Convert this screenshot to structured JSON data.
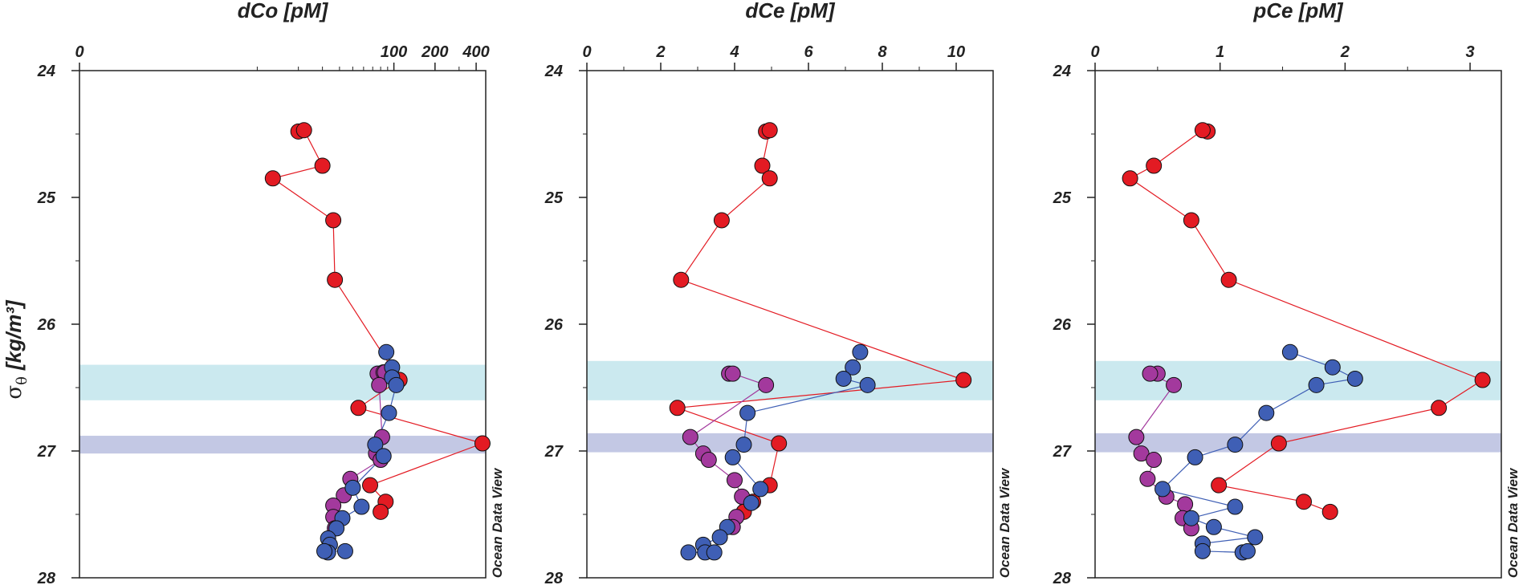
{
  "colors": {
    "upper": "#e31b23",
    "middle": "#a3399d",
    "lower": "#3f5fb5",
    "band_upper": "#cbe9ef",
    "band_lower": "#c3c8e4",
    "axis": "#222222"
  },
  "y_axis": {
    "label_symbol": "σ",
    "label_subscript": "θ",
    "label_unit": "[kg/m³]",
    "ylim": [
      24,
      28
    ],
    "ticks": [
      "24",
      "25",
      "26",
      "27",
      "28"
    ]
  },
  "watermark": "Ocean Data View",
  "chart_data": [
    {
      "type": "line",
      "title": "dCo [pM]",
      "x_scale": "log",
      "xlim": [
        0.5,
        470
      ],
      "x_ticks": [
        {
          "value": 0.5,
          "label": "0"
        },
        {
          "value": 100,
          "label": "100"
        },
        {
          "value": 200,
          "label": "200"
        },
        {
          "value": 400,
          "label": "400"
        }
      ],
      "x_minor": [
        10,
        20,
        30,
        40,
        50,
        60,
        70,
        80,
        90,
        300
      ],
      "bands": [
        [
          26.32,
          26.6
        ],
        [
          26.88,
          27.02
        ]
      ],
      "series": [
        {
          "name": "upper",
          "color_key": "upper",
          "points": [
            [
              20,
              24.48
            ],
            [
              22,
              24.47
            ],
            [
              30,
              24.75
            ],
            [
              13,
              24.85
            ],
            [
              36,
              25.18
            ],
            [
              37,
              25.65
            ],
            [
              110,
              26.44
            ],
            [
              55,
              26.66
            ],
            [
              445,
              26.94
            ],
            [
              67,
              27.27
            ],
            [
              87,
              27.4
            ],
            [
              80,
              27.48
            ]
          ]
        },
        {
          "name": "middle",
          "color_key": "middle",
          "points": [
            [
              76,
              26.39
            ],
            [
              84,
              26.38
            ],
            [
              86,
              26.38
            ],
            [
              78,
              26.48
            ],
            [
              82,
              26.89
            ],
            [
              74,
              27.02
            ],
            [
              80,
              27.07
            ],
            [
              48,
              27.22
            ],
            [
              43,
              27.35
            ],
            [
              36,
              27.43
            ],
            [
              36,
              27.52
            ],
            [
              37,
              27.61
            ]
          ]
        },
        {
          "name": "lower",
          "color_key": "lower",
          "points": [
            [
              88,
              26.22
            ],
            [
              97,
              26.34
            ],
            [
              97,
              26.42
            ],
            [
              104,
              26.48
            ],
            [
              92,
              26.7
            ],
            [
              73,
              26.95
            ],
            [
              84,
              27.04
            ],
            [
              50,
              27.29
            ],
            [
              58,
              27.44
            ],
            [
              42,
              27.53
            ],
            [
              38,
              27.61
            ],
            [
              33,
              27.69
            ],
            [
              34,
              27.74
            ],
            [
              33,
              27.8
            ],
            [
              31,
              27.79
            ],
            [
              44,
              27.79
            ]
          ]
        }
      ]
    },
    {
      "type": "line",
      "title": "dCe [pM]",
      "x_scale": "linear",
      "xlim": [
        0,
        11
      ],
      "x_ticks": [
        {
          "value": 0,
          "label": "0"
        },
        {
          "value": 2,
          "label": "2"
        },
        {
          "value": 4,
          "label": "4"
        },
        {
          "value": 6,
          "label": "6"
        },
        {
          "value": 8,
          "label": "8"
        },
        {
          "value": 10,
          "label": "10"
        }
      ],
      "x_minor": [
        1,
        3,
        5,
        7,
        9
      ],
      "bands": [
        [
          26.29,
          26.6
        ],
        [
          26.86,
          27.01
        ]
      ],
      "series": [
        {
          "name": "upper",
          "color_key": "upper",
          "points": [
            [
              4.85,
              24.48
            ],
            [
              4.95,
              24.47
            ],
            [
              4.75,
              24.75
            ],
            [
              4.95,
              24.85
            ],
            [
              3.65,
              25.18
            ],
            [
              2.55,
              25.65
            ],
            [
              10.2,
              26.44
            ],
            [
              2.45,
              26.66
            ],
            [
              5.2,
              26.94
            ],
            [
              4.95,
              27.27
            ],
            [
              4.5,
              27.4
            ],
            [
              4.25,
              27.48
            ]
          ]
        },
        {
          "name": "middle",
          "color_key": "middle",
          "points": [
            [
              3.85,
              26.39
            ],
            [
              3.95,
              26.39
            ],
            [
              4.85,
              26.48
            ],
            [
              2.8,
              26.89
            ],
            [
              3.15,
              27.02
            ],
            [
              3.3,
              27.07
            ],
            [
              4.0,
              27.23
            ],
            [
              4.2,
              27.36
            ],
            [
              4.05,
              27.52
            ],
            [
              3.95,
              27.6
            ]
          ]
        },
        {
          "name": "lower",
          "color_key": "lower",
          "points": [
            [
              7.4,
              26.22
            ],
            [
              7.2,
              26.34
            ],
            [
              6.95,
              26.43
            ],
            [
              7.6,
              26.48
            ],
            [
              4.35,
              26.7
            ],
            [
              4.25,
              26.95
            ],
            [
              3.95,
              27.05
            ],
            [
              4.7,
              27.3
            ],
            [
              4.45,
              27.41
            ],
            [
              3.8,
              27.6
            ],
            [
              3.6,
              27.68
            ],
            [
              3.15,
              27.74
            ],
            [
              3.2,
              27.8
            ],
            [
              2.75,
              27.8
            ],
            [
              3.45,
              27.8
            ]
          ]
        }
      ]
    },
    {
      "type": "line",
      "title": "pCe [pM]",
      "x_scale": "linear",
      "xlim": [
        0,
        3.25
      ],
      "x_ticks": [
        {
          "value": 0,
          "label": "0"
        },
        {
          "value": 1,
          "label": "1"
        },
        {
          "value": 2,
          "label": "2"
        },
        {
          "value": 3,
          "label": "3"
        }
      ],
      "x_minor": [
        0.5,
        1.5,
        2.5
      ],
      "bands": [
        [
          26.29,
          26.6
        ],
        [
          26.86,
          27.01
        ]
      ],
      "series": [
        {
          "name": "upper",
          "color_key": "upper",
          "points": [
            [
              0.9,
              24.48
            ],
            [
              0.86,
              24.47
            ],
            [
              0.47,
              24.75
            ],
            [
              0.28,
              24.85
            ],
            [
              0.77,
              25.18
            ],
            [
              1.07,
              25.65
            ],
            [
              3.1,
              26.44
            ],
            [
              2.75,
              26.66
            ],
            [
              1.47,
              26.94
            ],
            [
              0.99,
              27.27
            ],
            [
              1.67,
              27.4
            ],
            [
              1.88,
              27.48
            ]
          ]
        },
        {
          "name": "middle",
          "color_key": "middle",
          "points": [
            [
              0.5,
              26.39
            ],
            [
              0.44,
              26.39
            ],
            [
              0.63,
              26.48
            ],
            [
              0.33,
              26.89
            ],
            [
              0.37,
              27.02
            ],
            [
              0.47,
              27.07
            ],
            [
              0.42,
              27.22
            ],
            [
              0.57,
              27.36
            ],
            [
              0.72,
              27.42
            ],
            [
              0.7,
              27.53
            ],
            [
              0.77,
              27.61
            ]
          ]
        },
        {
          "name": "lower",
          "color_key": "lower",
          "points": [
            [
              1.56,
              26.22
            ],
            [
              1.9,
              26.34
            ],
            [
              2.08,
              26.43
            ],
            [
              1.77,
              26.48
            ],
            [
              1.37,
              26.7
            ],
            [
              1.12,
              26.95
            ],
            [
              0.8,
              27.05
            ],
            [
              0.54,
              27.3
            ],
            [
              1.12,
              27.44
            ],
            [
              0.77,
              27.53
            ],
            [
              0.95,
              27.6
            ],
            [
              1.28,
              27.68
            ],
            [
              0.86,
              27.73
            ],
            [
              0.86,
              27.79
            ],
            [
              1.18,
              27.8
            ],
            [
              1.22,
              27.79
            ]
          ]
        }
      ]
    }
  ]
}
